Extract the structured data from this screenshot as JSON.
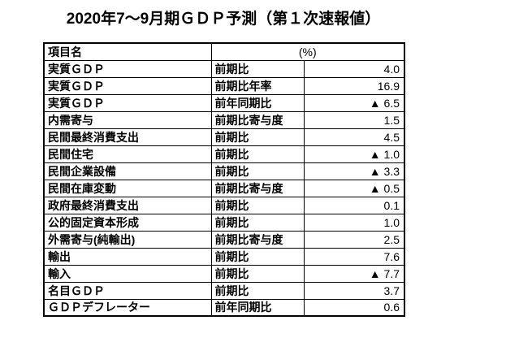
{
  "title": "2020年7～9月期ＧＤＰ予測（第１次速報値）",
  "table": {
    "header": {
      "item": "項目名",
      "unit": "(%)"
    },
    "rows": [
      {
        "item": "実質ＧＤＰ",
        "measure": "前期比",
        "value": "4.0"
      },
      {
        "item": "実質ＧＤＰ",
        "measure": "前期比年率",
        "value": "16.9"
      },
      {
        "item": "実質ＧＤＰ",
        "measure": "前年同期比",
        "value": "▲ 6.5"
      },
      {
        "item": "内需寄与",
        "measure": "前期比寄与度",
        "value": "1.5"
      },
      {
        "item": "民間最終消費支出",
        "measure": "前期比",
        "value": "4.5"
      },
      {
        "item": "民間住宅",
        "measure": "前期比",
        "value": "▲ 1.0"
      },
      {
        "item": "民間企業設備",
        "measure": "前期比",
        "value": "▲ 3.3"
      },
      {
        "item": "民間在庫変動",
        "measure": "前期比寄与度",
        "value": "▲ 0.5"
      },
      {
        "item": "政府最終消費支出",
        "measure": "前期比",
        "value": "0.1"
      },
      {
        "item": "公的固定資本形成",
        "measure": "前期比",
        "value": "1.0"
      },
      {
        "item": "外需寄与(純輸出)",
        "measure": "前期比寄与度",
        "value": "2.5"
      },
      {
        "item": "輸出",
        "measure": "前期比",
        "value": "7.6"
      },
      {
        "item": "輸入",
        "measure": "前期比",
        "value": "▲ 7.7"
      },
      {
        "item": "名目ＧＤＰ",
        "measure": "前期比",
        "value": "3.7"
      },
      {
        "item": "ＧＤＰデフレーター",
        "measure": "前年同期比",
        "value": "0.6"
      }
    ]
  },
  "colors": {
    "text": "#000000",
    "border": "#000000",
    "background": "#ffffff"
  }
}
